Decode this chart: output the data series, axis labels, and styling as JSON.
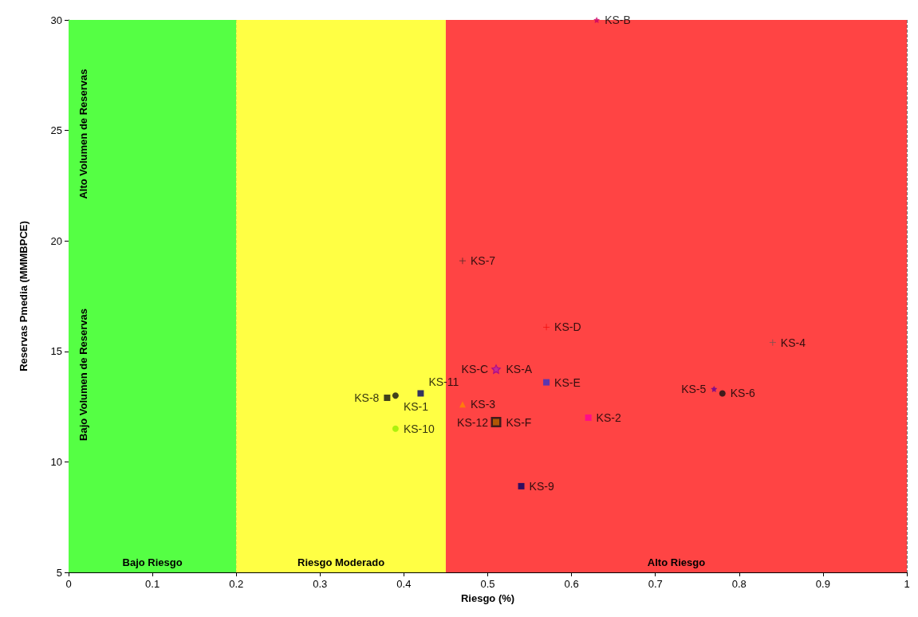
{
  "chart_data": {
    "type": "scatter",
    "xlabel": "Riesgo (%)",
    "ylabel": "Reservas Pmedia (MMMBPCE)",
    "xlim": [
      0,
      1
    ],
    "xticks": [
      0,
      0.1,
      0.2,
      0.3,
      0.4,
      0.5,
      0.6,
      0.7,
      0.8,
      0.9,
      1
    ],
    "ylim": [
      5,
      30
    ],
    "yticks": [
      5,
      10,
      15,
      20,
      25,
      30
    ],
    "grid": true,
    "legend": false,
    "bands": [
      {
        "axis": "x",
        "from": 0,
        "to": 0.2,
        "label": "Bajo Riesgo",
        "color": "#55ff44"
      },
      {
        "axis": "x",
        "from": 0.2,
        "to": 0.45,
        "label": "Riesgo Moderado",
        "color": "#ffff44"
      },
      {
        "axis": "x",
        "from": 0.45,
        "to": 1,
        "label": "Alto Riesgo",
        "color": "#ff4444"
      }
    ],
    "annotations": [
      "Alto Volumen de Reservas",
      "Bajo Volumen de Reservas"
    ],
    "series": [
      {
        "name": "KS-B",
        "color": "#cc0066",
        "marker": "star",
        "x": [
          0.63
        ],
        "values": [
          30
        ]
      },
      {
        "name": "KS-7",
        "color": "#222222",
        "marker": "cross",
        "x": [
          0.47
        ],
        "values": [
          19.1
        ]
      },
      {
        "name": "KS-D",
        "color": "#ee0000",
        "marker": "cross",
        "x": [
          0.57
        ],
        "values": [
          16.1
        ]
      },
      {
        "name": "KS-4",
        "color": "#555555",
        "marker": "cross",
        "x": [
          0.84
        ],
        "values": [
          15.4
        ]
      },
      {
        "name": "KS-A",
        "color": "#990099",
        "marker": "star",
        "x": [
          0.51
        ],
        "values": [
          14.2
        ]
      },
      {
        "name": "KS-C",
        "color": "#cc3399",
        "marker": "star",
        "x": [
          0.51
        ],
        "values": [
          14.2
        ]
      },
      {
        "name": "KS-E",
        "color": "#3333cc",
        "marker": "square",
        "x": [
          0.57
        ],
        "values": [
          13.6
        ]
      },
      {
        "name": "KS-5",
        "color": "#660099",
        "marker": "star",
        "x": [
          0.77
        ],
        "values": [
          13.3
        ]
      },
      {
        "name": "KS-6",
        "color": "#111111",
        "marker": "circle",
        "x": [
          0.78
        ],
        "values": [
          13.1
        ]
      },
      {
        "name": "KS-8",
        "color": "#111111",
        "marker": "square",
        "x": [
          0.38
        ],
        "values": [
          12.9
        ]
      },
      {
        "name": "KS-1",
        "color": "#111111",
        "marker": "circle",
        "x": [
          0.39
        ],
        "values": [
          13.0
        ]
      },
      {
        "name": "KS-11",
        "color": "#000066",
        "marker": "square",
        "x": [
          0.42
        ],
        "values": [
          13.1
        ]
      },
      {
        "name": "KS-3",
        "color": "#ff8800",
        "marker": "triangle",
        "x": [
          0.47
        ],
        "values": [
          12.6
        ]
      },
      {
        "name": "KS-F",
        "color": "#111111",
        "marker": "square",
        "x": [
          0.51
        ],
        "values": [
          11.8
        ]
      },
      {
        "name": "KS-12",
        "color": "#cc6600",
        "marker": "square",
        "x": [
          0.51
        ],
        "values": [
          11.8
        ]
      },
      {
        "name": "KS-2",
        "color": "#ff0099",
        "marker": "square",
        "x": [
          0.62
        ],
        "values": [
          12.0
        ]
      },
      {
        "name": "KS-10",
        "color": "#99ee00",
        "marker": "circle",
        "x": [
          0.39
        ],
        "values": [
          11.5
        ]
      },
      {
        "name": "KS-9",
        "color": "#000066",
        "marker": "square",
        "x": [
          0.54
        ],
        "values": [
          8.9
        ]
      }
    ]
  }
}
